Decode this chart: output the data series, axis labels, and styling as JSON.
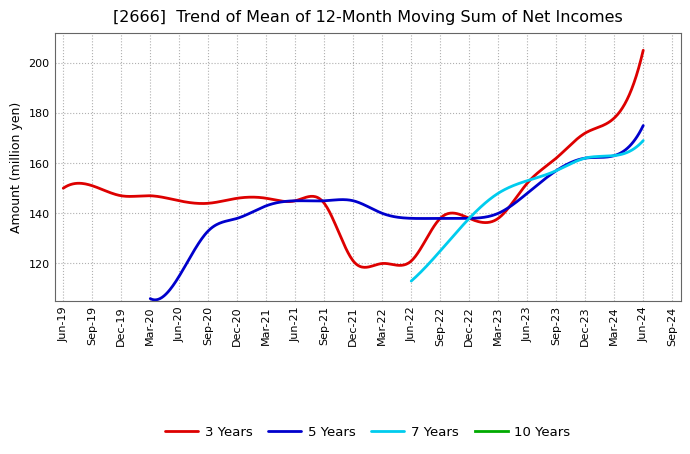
{
  "title": "[2666]  Trend of Mean of 12-Month Moving Sum of Net Incomes",
  "ylabel": "Amount (million yen)",
  "background_color": "#ffffff",
  "plot_background": "#ffffff",
  "grid_color": "#b0b0b0",
  "title_fontsize": 11.5,
  "axis_fontsize": 9,
  "tick_fontsize": 8,
  "legend_fontsize": 9.5,
  "x_labels": [
    "Jun-19",
    "Sep-19",
    "Dec-19",
    "Mar-20",
    "Jun-20",
    "Sep-20",
    "Dec-20",
    "Mar-21",
    "Jun-21",
    "Sep-21",
    "Dec-21",
    "Mar-22",
    "Jun-22",
    "Sep-22",
    "Dec-22",
    "Mar-23",
    "Jun-23",
    "Sep-23",
    "Dec-23",
    "Mar-24",
    "Jun-24",
    "Sep-24"
  ],
  "series_3y": [
    150,
    151,
    147,
    147,
    145,
    144,
    146,
    146,
    145,
    144,
    121,
    120,
    121,
    138,
    138,
    138,
    152,
    162,
    172,
    178,
    205,
    null
  ],
  "series_5y": [
    null,
    null,
    null,
    106,
    115,
    133,
    138,
    143,
    145,
    145,
    145,
    140,
    138,
    138,
    138,
    140,
    148,
    157,
    162,
    163,
    175,
    null
  ],
  "series_7y": [
    null,
    null,
    null,
    null,
    null,
    null,
    null,
    null,
    null,
    null,
    null,
    null,
    113,
    125,
    138,
    148,
    153,
    157,
    162,
    163,
    169,
    null
  ],
  "series_10y": [
    null,
    null,
    null,
    null,
    null,
    null,
    null,
    null,
    null,
    null,
    null,
    null,
    null,
    null,
    null,
    null,
    null,
    null,
    null,
    null,
    null,
    null
  ],
  "color_3y": "#dd0000",
  "color_5y": "#0000cc",
  "color_7y": "#00ccee",
  "color_10y": "#00aa00",
  "line_width": 2.0,
  "ylim_min": 105,
  "ylim_max": 212,
  "yticks": [
    120,
    140,
    160,
    180,
    200
  ],
  "legend_labels": [
    "3 Years",
    "5 Years",
    "7 Years",
    "10 Years"
  ]
}
